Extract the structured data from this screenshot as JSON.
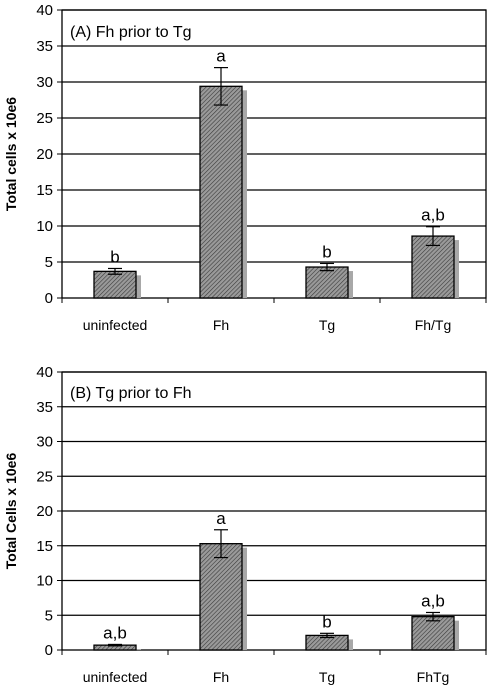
{
  "chart_data": [
    {
      "type": "bar",
      "panel_label": "(A) Fh prior to Tg",
      "ylabel": "Total cells x 10e6",
      "xlabel": "",
      "ylim": [
        0,
        40
      ],
      "yticks": [
        0,
        5,
        10,
        15,
        20,
        25,
        30,
        35,
        40
      ],
      "grid": true,
      "categories": [
        "uninfected",
        "Fh",
        "Tg",
        "Fh/Tg"
      ],
      "values": [
        3.7,
        29.4,
        4.3,
        8.6
      ],
      "error": [
        0.4,
        2.6,
        0.5,
        1.3
      ],
      "significance": [
        "b",
        "a",
        "b",
        "a,b"
      ],
      "bar_color": "#8c8c8c"
    },
    {
      "type": "bar",
      "panel_label": "(B) Tg prior to Fh",
      "ylabel": "Total Cells x 10e6",
      "xlabel": "",
      "ylim": [
        0,
        40
      ],
      "yticks": [
        0,
        5,
        10,
        15,
        20,
        25,
        30,
        35,
        40
      ],
      "grid": true,
      "categories": [
        "uninfected",
        "Fh",
        "Tg",
        "FhTg"
      ],
      "values": [
        0.7,
        15.3,
        2.1,
        4.8
      ],
      "error": [
        0.1,
        2.0,
        0.3,
        0.6
      ],
      "significance": [
        "a,b",
        "a",
        "b",
        "a,b"
      ],
      "bar_color": "#8c8c8c"
    }
  ]
}
